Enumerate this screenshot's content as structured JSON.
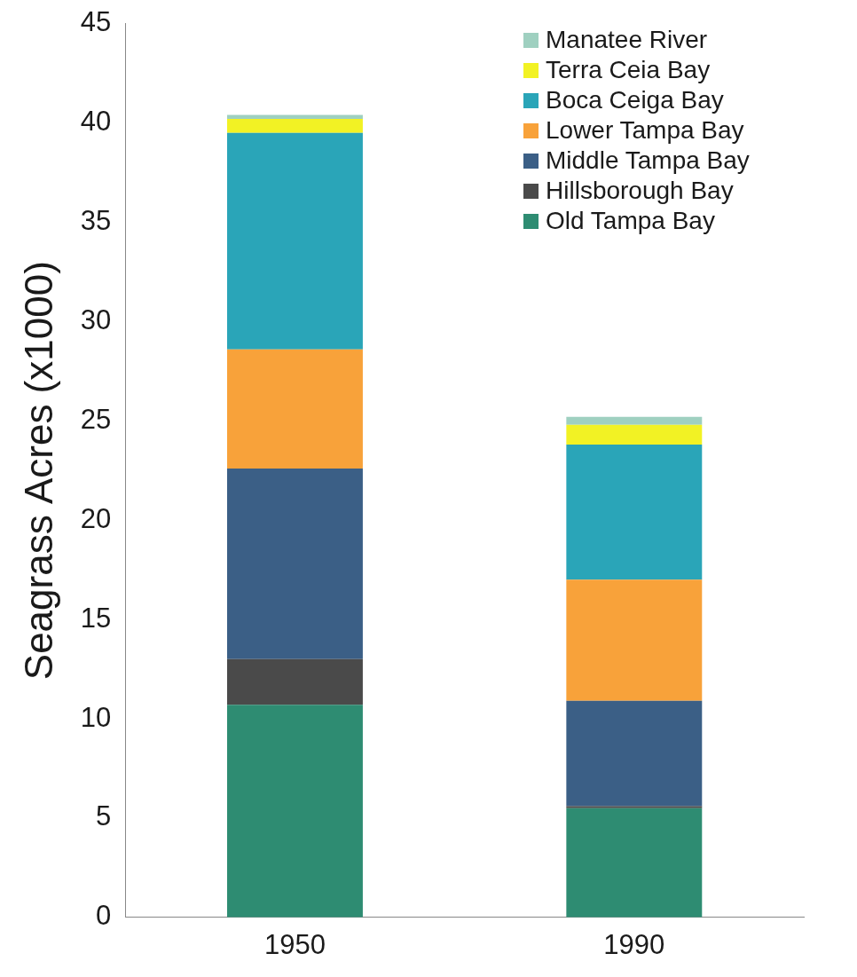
{
  "chart_data": {
    "type": "bar",
    "stacked": true,
    "y_label": "Seagrass Acres (x1000)",
    "categories": [
      "1950",
      "1990"
    ],
    "series": [
      {
        "name": "Old Tampa Bay",
        "color": "#2e8c72",
        "values": [
          10.7,
          5.5
        ]
      },
      {
        "name": "Hillsborough Bay",
        "color": "#4a4a4a",
        "values": [
          2.3,
          0.1
        ]
      },
      {
        "name": "Middle Tampa Bay",
        "color": "#3b5f86",
        "values": [
          9.6,
          5.3
        ]
      },
      {
        "name": "Lower Tampa Bay",
        "color": "#f8a23a",
        "values": [
          6.0,
          6.1
        ]
      },
      {
        "name": "Boca Ceiga Bay",
        "color": "#2aa5b8",
        "values": [
          10.9,
          6.8
        ]
      },
      {
        "name": "Terra Ceia Bay",
        "color": "#f2f224",
        "values": [
          0.7,
          1.0
        ]
      },
      {
        "name": "Manatee River",
        "color": "#9fd0c0",
        "values": [
          0.2,
          0.4
        ]
      }
    ],
    "ylim": [
      0,
      45
    ],
    "yticks": [
      0,
      5,
      10,
      15,
      20,
      25,
      30,
      35,
      40,
      45
    ],
    "grid": false,
    "legend": "upper right"
  }
}
